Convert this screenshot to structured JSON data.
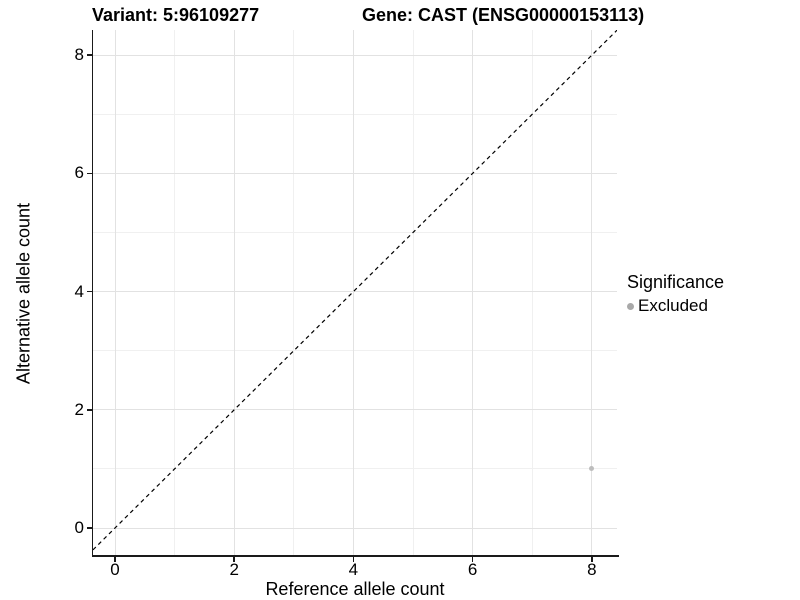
{
  "titles": {
    "variant": "Variant: 5:96109277",
    "gene": "Gene: CAST (ENSG00000153113)"
  },
  "chart_data": {
    "type": "scatter",
    "title": "Variant: 5:96109277   Gene: CAST (ENSG00000153113)",
    "xlabel": "Reference allele count",
    "ylabel": "Alternative allele count",
    "xlim": [
      -0.4,
      8.4
    ],
    "ylim": [
      -0.45,
      8.4
    ],
    "x_ticks": [
      0,
      2,
      4,
      6,
      8
    ],
    "y_ticks": [
      0,
      2,
      4,
      6,
      8
    ],
    "x_minor_ticks": [
      1,
      3,
      5,
      7
    ],
    "y_minor_ticks": [
      1,
      3,
      5,
      7
    ],
    "grid": true,
    "series": [
      {
        "name": "Excluded",
        "color": "#bdbdbd",
        "points": [
          {
            "x": 8,
            "y": 1
          }
        ]
      }
    ],
    "reference_line": {
      "type": "abline",
      "slope": 1,
      "intercept": 0,
      "style": "dashed",
      "color": "#000000"
    },
    "legend": {
      "title": "Significance",
      "position": "right",
      "entries": [
        {
          "label": "Excluded",
          "color": "#a9a9a9"
        }
      ]
    },
    "style": {
      "major_grid_color": "#e2e2e2",
      "minor_grid_color": "#f0f0f0",
      "axis_color": "#1a1a1a",
      "background": "#ffffff"
    }
  }
}
